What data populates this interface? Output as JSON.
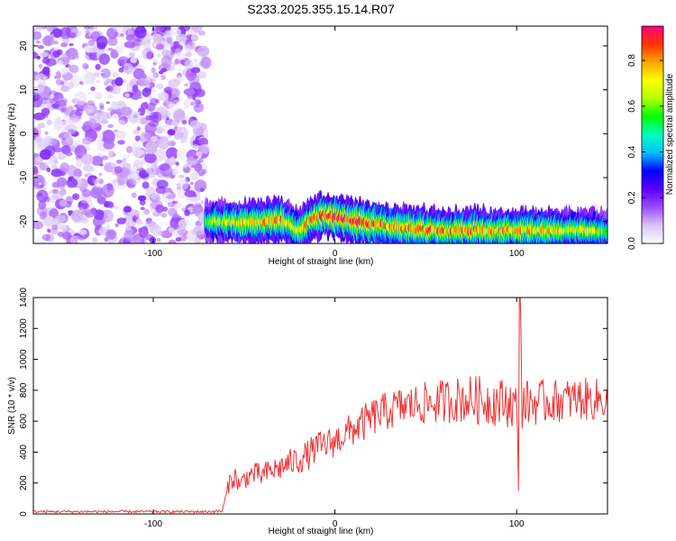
{
  "title": "S233.2025.355.15.14.R07",
  "chart_data": [
    {
      "type": "heatmap",
      "xlabel": "Height of straight line (km)",
      "ylabel": "Frequency (Hz)",
      "xlim": [
        -166,
        150
      ],
      "ylim": [
        -25,
        24.5
      ],
      "xticks": [
        -100,
        0,
        100
      ],
      "yticks": [
        -20,
        -10,
        0,
        10,
        20
      ],
      "grid": false,
      "colorbar": {
        "label": "Normalized spectral amplitude",
        "range": [
          0,
          0.95
        ],
        "ticks": [
          0.0,
          0.2,
          0.4,
          0.6,
          0.8
        ],
        "colors": [
          "#ffffff",
          "#d9c2f5",
          "#9e4bff",
          "#5a00ff",
          "#0000ff",
          "#00bfff",
          "#00ffbf",
          "#00ff00",
          "#b3ff00",
          "#ffff00",
          "#ffa500",
          "#ff3300",
          "#ff007f"
        ]
      },
      "features": {
        "noise_region": {
          "x_range": [
            -166,
            -71
          ],
          "freq_range": [
            -25,
            24.5
          ],
          "amplitude": [
            0.02,
            0.2
          ]
        },
        "signal_ridge": {
          "x": [
            -71,
            -60,
            -50,
            -40,
            -30,
            -25,
            -20,
            -15,
            -10,
            -5,
            0,
            10,
            20,
            30,
            40,
            50,
            60,
            70,
            80,
            90,
            100,
            110,
            120,
            130,
            140,
            150
          ],
          "freq": [
            -20,
            -20,
            -20.2,
            -20,
            -19.5,
            -20.5,
            -22.5,
            -20,
            -19,
            -18.5,
            -19,
            -19.8,
            -20.5,
            -21,
            -21.5,
            -22,
            -22,
            -22,
            -22,
            -22,
            -22,
            -22,
            -22,
            -22,
            -22,
            -22.5
          ],
          "peak_amplitude": [
            0.55,
            0.7,
            0.75,
            0.8,
            0.8,
            0.7,
            0.75,
            0.8,
            0.85,
            0.9,
            0.9,
            0.9,
            0.85,
            0.8,
            0.8,
            0.85,
            0.85,
            0.8,
            0.8,
            0.8,
            0.8,
            0.75,
            0.75,
            0.7,
            0.7,
            0.6
          ]
        }
      }
    },
    {
      "type": "line",
      "xlabel": "Height of straight line (km)",
      "ylabel": "SNR (10 * v/v)",
      "xlim": [
        -166,
        150
      ],
      "ylim": [
        0,
        1400
      ],
      "xticks": [
        -100,
        0,
        100
      ],
      "yticks": [
        0,
        200,
        400,
        600,
        800,
        1000,
        1200,
        1400
      ],
      "grid": false,
      "series": [
        {
          "color": "#ee3333",
          "x": [
            -166,
            -150,
            -130,
            -110,
            -90,
            -70,
            -62,
            -58,
            -55,
            -52,
            -50,
            -45,
            -40,
            -35,
            -30,
            -25,
            -20,
            -15,
            -10,
            -5,
            0,
            5,
            10,
            15,
            20,
            25,
            30,
            35,
            40,
            45,
            50,
            55,
            60,
            65,
            70,
            75,
            80,
            85,
            90,
            95,
            100,
            101,
            102,
            103,
            105,
            110,
            115,
            120,
            125,
            130,
            135,
            140,
            145,
            150
          ],
          "y": [
            15,
            15,
            15,
            15,
            15,
            15,
            18,
            210,
            240,
            180,
            230,
            260,
            250,
            280,
            300,
            330,
            350,
            380,
            430,
            450,
            470,
            510,
            550,
            580,
            620,
            650,
            670,
            690,
            700,
            710,
            715,
            720,
            730,
            740,
            740,
            740,
            735,
            730,
            725,
            720,
            700,
            200,
            1400,
            700,
            720,
            720,
            725,
            730,
            735,
            740,
            745,
            740,
            740,
            735
          ],
          "noise": [
            8,
            8,
            8,
            8,
            8,
            8,
            10,
            60,
            70,
            60,
            70,
            75,
            80,
            80,
            85,
            90,
            95,
            100,
            100,
            105,
            105,
            110,
            115,
            120,
            125,
            125,
            130,
            130,
            130,
            135,
            140,
            140,
            145,
            150,
            155,
            160,
            160,
            160,
            160,
            160,
            150,
            0,
            0,
            150,
            150,
            150,
            145,
            140,
            140,
            140,
            140,
            140,
            140,
            120
          ]
        }
      ]
    }
  ]
}
